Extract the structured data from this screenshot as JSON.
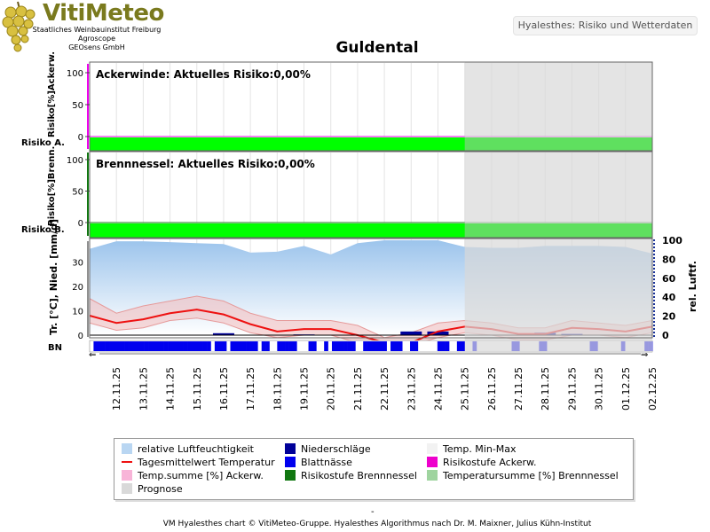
{
  "header": {
    "logo": "VitiMeteo",
    "org_lines": [
      "Staatliches Weinbauinstitut Freiburg",
      "Agroscope",
      "GEOsens GmbH"
    ],
    "badge": "Hyalesthes: Risiko und Wetterdaten",
    "title": "Guldental"
  },
  "colors": {
    "risk_green": "#00ff00",
    "risk_green_prognose": "#5fe05f",
    "prognose_shade": "#d9d9d9",
    "temp_line": "#ee1111",
    "temp_band": "#f4c0c0",
    "humidity": "#a7cbef",
    "wetness": "#0000ee",
    "precip": "#000099",
    "ackerw_axis": "#ee00ee",
    "brenn_axis": "#117711",
    "right_axis": "#1a3399"
  },
  "chart_data": [
    {
      "type": "area",
      "title": "Ackerwinde: Aktuelles Risiko:0,00%",
      "ylabel": "Risiko[%]Ackerw.",
      "band_label": "Risiko A.",
      "ylim": [
        0,
        100
      ],
      "yticks": [
        0,
        50,
        100
      ],
      "series": [
        {
          "name": "Risikostufe Ackerw.",
          "values": [
            0,
            0,
            0,
            0,
            0,
            0,
            0,
            0,
            0,
            0,
            0,
            0,
            0,
            0,
            0,
            0,
            0,
            0,
            0,
            0,
            0,
            0
          ]
        }
      ]
    },
    {
      "type": "area",
      "title": "Brennnessel: Aktuelles Risiko:0,00%",
      "ylabel": "Risiko[%]Brenn.",
      "band_label": "Risiko B.",
      "ylim": [
        0,
        100
      ],
      "yticks": [
        0,
        50,
        100
      ],
      "series": [
        {
          "name": "Risikostufe Brennnessel",
          "values": [
            0,
            0,
            0,
            0,
            0,
            0,
            0,
            0,
            0,
            0,
            0,
            0,
            0,
            0,
            0,
            0,
            0,
            0,
            0,
            0,
            0,
            0
          ]
        }
      ]
    },
    {
      "type": "line",
      "ylabel_left": "Tr. [°C], Nied. [mm/d]",
      "ylabel_right": "rel. Luftf.",
      "wetness_label": "BN",
      "ylim_left": [
        -5,
        40
      ],
      "yticks_left": [
        0,
        10,
        20,
        30
      ],
      "ylim_right": [
        0,
        100
      ],
      "yticks_right": [
        0,
        20,
        40,
        60,
        80,
        100
      ],
      "categories": [
        "12.11.25",
        "13.11.25",
        "14.11.25",
        "15.11.25",
        "16.11.25",
        "17.11.25",
        "18.11.25",
        "19.11.25",
        "20.11.25",
        "21.11.25",
        "22.11.25",
        "23.11.25",
        "24.11.25",
        "25.11.25",
        "26.11.25",
        "27.11.25",
        "28.11.25",
        "29.11.25",
        "30.11.25",
        "01.12.25",
        "02.12.25"
      ],
      "x_points": [
        11.5,
        12.5,
        13.5,
        14.5,
        15.5,
        16.5,
        17.5,
        18.5,
        19.5,
        20.5,
        21.5,
        22.5,
        23.5,
        24.5,
        25.5,
        26.5,
        27.5,
        28.5,
        29.5,
        30.5,
        31.5,
        32.5
      ],
      "prognose_start": 25.5,
      "humidity": [
        91,
        99,
        99,
        98,
        97,
        96,
        87,
        88,
        94,
        85,
        97,
        100,
        100,
        100,
        93,
        92,
        92,
        94,
        94,
        94,
        93,
        86
      ],
      "temp_mean": [
        8,
        5,
        6.5,
        9,
        10.5,
        8.5,
        4.5,
        1.5,
        2.5,
        2.5,
        0,
        -3,
        -3,
        1.5,
        3.5,
        2.5,
        0.5,
        0.5,
        3,
        2.5,
        1.5,
        3.5
      ],
      "temp_min": [
        5,
        2,
        3,
        6,
        7,
        5,
        1,
        -1,
        0,
        0,
        -3,
        -5,
        -4,
        -1,
        1,
        0,
        -2,
        -2,
        0,
        0,
        -1,
        1
      ],
      "temp_max": [
        15,
        9,
        12,
        14,
        16,
        14,
        9,
        6,
        6,
        6,
        4,
        -1,
        1,
        5,
        6,
        5,
        3,
        3,
        6,
        5,
        4,
        6
      ],
      "precip": [
        0,
        0,
        0,
        0,
        0,
        0.8,
        0,
        0,
        0.3,
        0,
        0,
        0,
        1.5,
        1.5,
        0,
        0,
        0,
        1,
        0.5,
        0,
        0,
        0
      ],
      "leaf_wetness": [
        0,
        1,
        1,
        1,
        1,
        1,
        1,
        1,
        1,
        1,
        1,
        1,
        1,
        1,
        1,
        1,
        1,
        1,
        1,
        1,
        1,
        1,
        1,
        1,
        1,
        1,
        1,
        1,
        1,
        1,
        1,
        0,
        1,
        1,
        1,
        0,
        1,
        1,
        1,
        1,
        1,
        1,
        1,
        0,
        1,
        1,
        0,
        0,
        1,
        1,
        1,
        1,
        1,
        0,
        0,
        0,
        1,
        1,
        0,
        0,
        1,
        0,
        1,
        1,
        1,
        1,
        1,
        1,
        0,
        0,
        1,
        1,
        1,
        1,
        1,
        1,
        0,
        1,
        1,
        1,
        0,
        0,
        1,
        1,
        0,
        0,
        0,
        0,
        0,
        1,
        1,
        1,
        0,
        0,
        1,
        1,
        0,
        0,
        1,
        0,
        0,
        0,
        0,
        0,
        0,
        0,
        0,
        0,
        1,
        1,
        0,
        0,
        0,
        0,
        0,
        1,
        1,
        0,
        0,
        0,
        0,
        0,
        0,
        0,
        0,
        0,
        0,
        0,
        1,
        1,
        0,
        0,
        0,
        0,
        0,
        0,
        1,
        0,
        0,
        0,
        0,
        0,
        1,
        1
      ]
    }
  ],
  "legend": [
    {
      "label": "relative Luftfeuchtigkeit",
      "color": "#b9d6f2"
    },
    {
      "label": "Niederschläge",
      "color": "#000099"
    },
    {
      "label": "Temp. Min-Max",
      "color": "#f2f2f2"
    },
    {
      "label": "Tagesmittelwert Temperatur",
      "color": "#ee1111"
    },
    {
      "label": "Blattnässe",
      "color": "#0000ee"
    },
    {
      "label": "Risikostufe Ackerw.",
      "color": "#ee00cc"
    },
    {
      "label": "Temp.summe [%] Ackerw.",
      "color": "#f8b4d8"
    },
    {
      "label": "Risikostufe Brennnessel",
      "color": "#117711"
    },
    {
      "label": "Temperatursumme [%] Brennnessel",
      "color": "#9fd49f"
    },
    {
      "label": "Prognose",
      "color": "#d9d9d9"
    }
  ],
  "footer": {
    "mark": "-",
    "text": "VM Hyalesthes chart © VitiMeteo-Gruppe. Hyalesthes Algorithmus nach Dr. M. Maixner, Julius Kühn-Institut"
  }
}
